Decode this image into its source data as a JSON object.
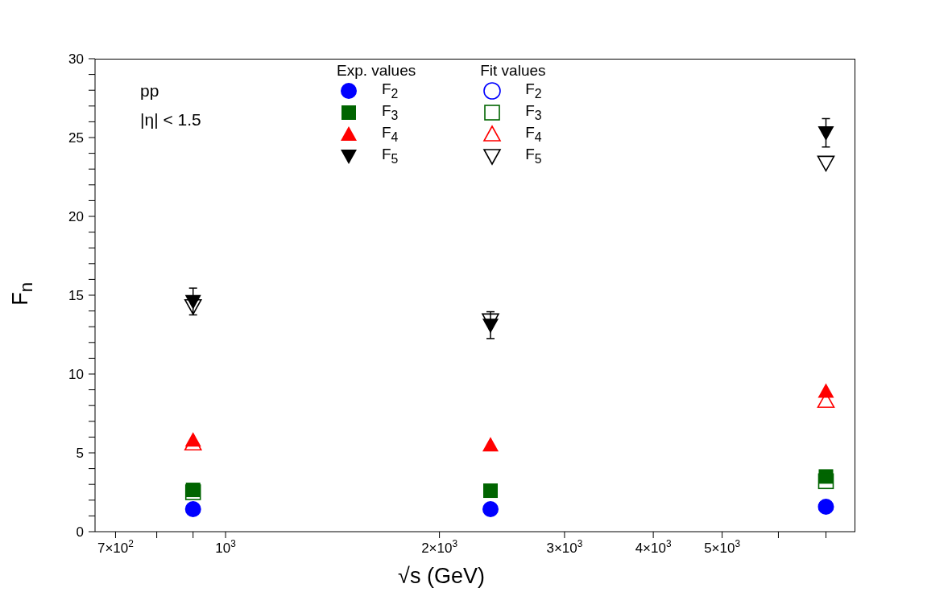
{
  "chart_data": {
    "type": "scatter",
    "xlabel": "√s (GeV)",
    "ylabel": "F$_{n}$",
    "legend_title": "Exp. values",
    "annotations": [
      "Fit values",
      "pp",
      "|η| < 1.5"
    ],
    "log": "x",
    "legend": "top",
    "grid": false,
    "xlim": [
      655,
      7700
    ],
    "xticks": [
      {
        "value": 700,
        "label": "7×10$^{2}$"
      },
      {
        "value": 800,
        "label": null
      },
      {
        "value": 900,
        "label": null
      },
      {
        "value": 1000,
        "label": "10$^{3}$"
      },
      {
        "value": 2000,
        "label": "2×10$^{3}$"
      },
      {
        "value": 3000,
        "label": "3×10$^{3}$"
      },
      {
        "value": 4000,
        "label": "4×10$^{3}$"
      },
      {
        "value": 5000,
        "label": "5×10$^{3}$"
      },
      {
        "value": 6000,
        "label": null
      },
      {
        "value": 7000,
        "label": null
      }
    ],
    "ylim": [
      0,
      30
    ],
    "yticks": [
      0,
      {
        "value": 1,
        "label": null
      },
      {
        "value": 2,
        "label": null
      },
      {
        "value": 3,
        "label": null
      },
      {
        "value": 4,
        "label": null
      },
      5,
      {
        "value": 6,
        "label": null
      },
      {
        "value": 7,
        "label": null
      },
      {
        "value": 8,
        "label": null
      },
      {
        "value": 9,
        "label": null
      },
      10,
      {
        "value": 11,
        "label": null
      },
      {
        "value": 12,
        "label": null
      },
      {
        "value": 13,
        "label": null
      },
      {
        "value": 14,
        "label": null
      },
      15,
      {
        "value": 16,
        "label": null
      },
      {
        "value": 17,
        "label": null
      },
      {
        "value": 18,
        "label": null
      },
      {
        "value": 19,
        "label": null
      },
      20,
      {
        "value": 21,
        "label": null
      },
      {
        "value": 22,
        "label": null
      },
      {
        "value": 23,
        "label": null
      },
      {
        "value": 24,
        "label": null
      },
      25,
      {
        "value": 26,
        "label": null
      },
      {
        "value": 27,
        "label": null
      },
      {
        "value": 28,
        "label": null
      },
      {
        "value": 29,
        "label": null
      },
      30
    ],
    "x": [
      900,
      2360,
      7000
    ],
    "series": [
      {
        "name": "F$_{2}$",
        "color": "#0000ff",
        "marker": "circle",
        "values": [
          1.43,
          1.43,
          1.58
        ]
      },
      {
        "name": "F$_{3}$",
        "color": "#006400",
        "marker": "square",
        "values": [
          2.65,
          2.6,
          3.5
        ]
      },
      {
        "name": "F$_{4}$",
        "color": "#ff0000",
        "marker": "triangle",
        "values": [
          5.8,
          5.5,
          8.9
        ]
      },
      {
        "name": "F$_{5}$",
        "color": "#000000",
        "marker": "triangle-down",
        "values": [
          14.6,
          13.1,
          25.3
        ],
        "errors": [
          0.85,
          0.85,
          0.9
        ]
      },
      {
        "name": "F$_{2}$",
        "color": "#0000ff",
        "marker": "circle-open",
        "values": [
          null,
          null,
          null
        ]
      },
      {
        "name": "F$_{3}$",
        "color": "#006400",
        "marker": "square-open",
        "values": [
          2.5,
          null,
          3.2
        ]
      },
      {
        "name": "F$_{4}$",
        "color": "#ff0000",
        "marker": "triangle-open",
        "values": [
          5.6,
          null,
          8.3
        ]
      },
      {
        "name": "F$_{5}$",
        "color": "#000000",
        "marker": "triangle-down-open",
        "values": [
          14.3,
          13.4,
          23.4
        ]
      }
    ]
  }
}
